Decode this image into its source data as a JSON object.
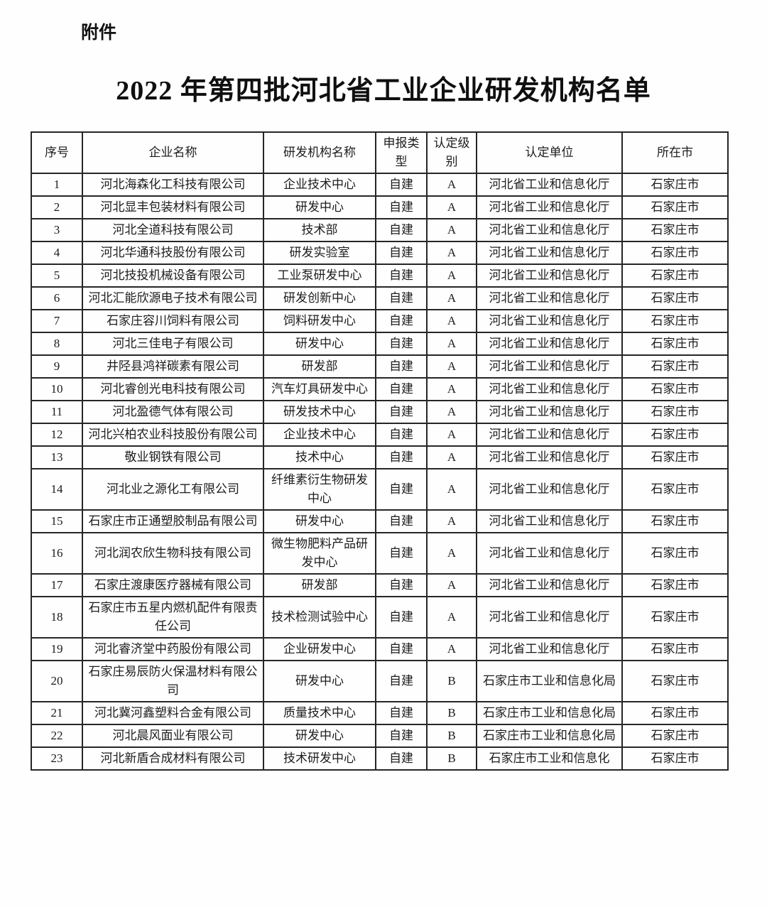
{
  "page": {
    "attachment_label": "附件",
    "title": "2022 年第四批河北省工业企业研发机构名单"
  },
  "table": {
    "columns": [
      "序号",
      "企业名称",
      "研发机构名称",
      "申报类型",
      "认定级别",
      "认定单位",
      "所在市"
    ],
    "rows": [
      {
        "no": "1",
        "company": "河北海森化工科技有限公司",
        "center": "企业技术中心",
        "type": "自建",
        "level": "A",
        "authority": "河北省工业和信息化厅",
        "city": "石家庄市"
      },
      {
        "no": "2",
        "company": "河北显丰包装材料有限公司",
        "center": "研发中心",
        "type": "自建",
        "level": "A",
        "authority": "河北省工业和信息化厅",
        "city": "石家庄市"
      },
      {
        "no": "3",
        "company": "河北全道科技有限公司",
        "center": "技术部",
        "type": "自建",
        "level": "A",
        "authority": "河北省工业和信息化厅",
        "city": "石家庄市"
      },
      {
        "no": "4",
        "company": "河北华通科技股份有限公司",
        "center": "研发实验室",
        "type": "自建",
        "level": "A",
        "authority": "河北省工业和信息化厅",
        "city": "石家庄市"
      },
      {
        "no": "5",
        "company": "河北技投机械设备有限公司",
        "center": "工业泵研发中心",
        "type": "自建",
        "level": "A",
        "authority": "河北省工业和信息化厅",
        "city": "石家庄市"
      },
      {
        "no": "6",
        "company": "河北汇能欣源电子技术有限公司",
        "center": "研发创新中心",
        "type": "自建",
        "level": "A",
        "authority": "河北省工业和信息化厅",
        "city": "石家庄市"
      },
      {
        "no": "7",
        "company": "石家庄容川饲料有限公司",
        "center": "饲料研发中心",
        "type": "自建",
        "level": "A",
        "authority": "河北省工业和信息化厅",
        "city": "石家庄市"
      },
      {
        "no": "8",
        "company": "河北三佳电子有限公司",
        "center": "研发中心",
        "type": "自建",
        "level": "A",
        "authority": "河北省工业和信息化厅",
        "city": "石家庄市"
      },
      {
        "no": "9",
        "company": "井陉县鸿祥碳素有限公司",
        "center": "研发部",
        "type": "自建",
        "level": "A",
        "authority": "河北省工业和信息化厅",
        "city": "石家庄市"
      },
      {
        "no": "10",
        "company": "河北睿创光电科技有限公司",
        "center": "汽车灯具研发中心",
        "type": "自建",
        "level": "A",
        "authority": "河北省工业和信息化厅",
        "city": "石家庄市"
      },
      {
        "no": "11",
        "company": "河北盈德气体有限公司",
        "center": "研发技术中心",
        "type": "自建",
        "level": "A",
        "authority": "河北省工业和信息化厅",
        "city": "石家庄市"
      },
      {
        "no": "12",
        "company": "河北兴柏农业科技股份有限公司",
        "center": "企业技术中心",
        "type": "自建",
        "level": "A",
        "authority": "河北省工业和信息化厅",
        "city": "石家庄市"
      },
      {
        "no": "13",
        "company": "敬业钢铁有限公司",
        "center": "技术中心",
        "type": "自建",
        "level": "A",
        "authority": "河北省工业和信息化厅",
        "city": "石家庄市"
      },
      {
        "no": "14",
        "company": "河北业之源化工有限公司",
        "center": "纤维素衍生物研发中心",
        "type": "自建",
        "level": "A",
        "authority": "河北省工业和信息化厅",
        "city": "石家庄市"
      },
      {
        "no": "15",
        "company": "石家庄市正通塑胶制品有限公司",
        "center": "研发中心",
        "type": "自建",
        "level": "A",
        "authority": "河北省工业和信息化厅",
        "city": "石家庄市"
      },
      {
        "no": "16",
        "company": "河北润农欣生物科技有限公司",
        "center": "微生物肥料产品研发中心",
        "type": "自建",
        "level": "A",
        "authority": "河北省工业和信息化厅",
        "city": "石家庄市"
      },
      {
        "no": "17",
        "company": "石家庄渡康医疗器械有限公司",
        "center": "研发部",
        "type": "自建",
        "level": "A",
        "authority": "河北省工业和信息化厅",
        "city": "石家庄市"
      },
      {
        "no": "18",
        "company": "石家庄市五星内燃机配件有限责任公司",
        "center": "技术检测试验中心",
        "type": "自建",
        "level": "A",
        "authority": "河北省工业和信息化厅",
        "city": "石家庄市"
      },
      {
        "no": "19",
        "company": "河北睿济堂中药股份有限公司",
        "center": "企业研发中心",
        "type": "自建",
        "level": "A",
        "authority": "河北省工业和信息化厅",
        "city": "石家庄市"
      },
      {
        "no": "20",
        "company": "石家庄易辰防火保温材料有限公司",
        "center": "研发中心",
        "type": "自建",
        "level": "B",
        "authority": "石家庄市工业和信息化局",
        "city": "石家庄市"
      },
      {
        "no": "21",
        "company": "河北冀河鑫塑料合金有限公司",
        "center": "质量技术中心",
        "type": "自建",
        "level": "B",
        "authority": "石家庄市工业和信息化局",
        "city": "石家庄市"
      },
      {
        "no": "22",
        "company": "河北晨风面业有限公司",
        "center": "研发中心",
        "type": "自建",
        "level": "B",
        "authority": "石家庄市工业和信息化局",
        "city": "石家庄市"
      },
      {
        "no": "23",
        "company": "河北新盾合成材料有限公司",
        "center": "技术研发中心",
        "type": "自建",
        "level": "B",
        "authority": "石家庄市工业和信息化",
        "city": "石家庄市"
      }
    ]
  }
}
